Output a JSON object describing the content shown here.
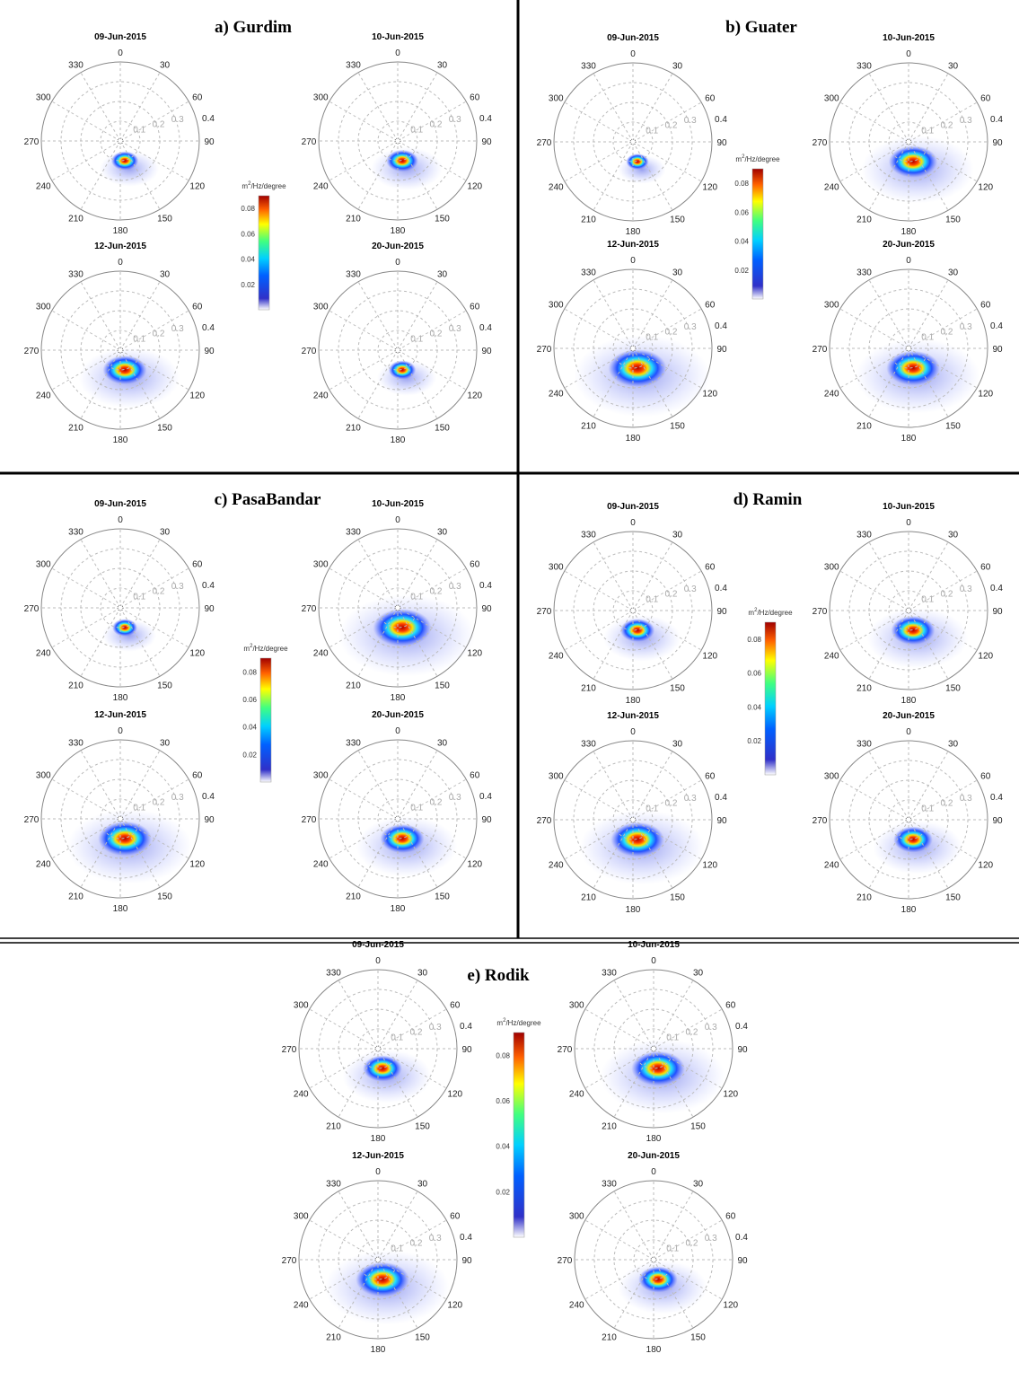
{
  "panels": [
    {
      "title": "a) Gurdim"
    },
    {
      "title": "b) Guater"
    },
    {
      "title": "c) PasaBandar"
    },
    {
      "title": "d) Ramin"
    },
    {
      "title": "e) Rodik"
    }
  ],
  "dates": [
    "09-Jun-2015",
    "10-Jun-2015",
    "12-Jun-2015",
    "20-Jun-2015"
  ],
  "angle_labels": [
    "0",
    "30",
    "60",
    "90",
    "120",
    "150",
    "180",
    "210",
    "240",
    "270",
    "300",
    "330"
  ],
  "radial_ticks": [
    0.1,
    0.2,
    0.3,
    0.4
  ],
  "colorbar": {
    "label_base": "m",
    "label_exp": "2",
    "label_rest": "/Hz/degree",
    "ticks": [
      0.02,
      0.04,
      0.06,
      0.08
    ]
  }
}
